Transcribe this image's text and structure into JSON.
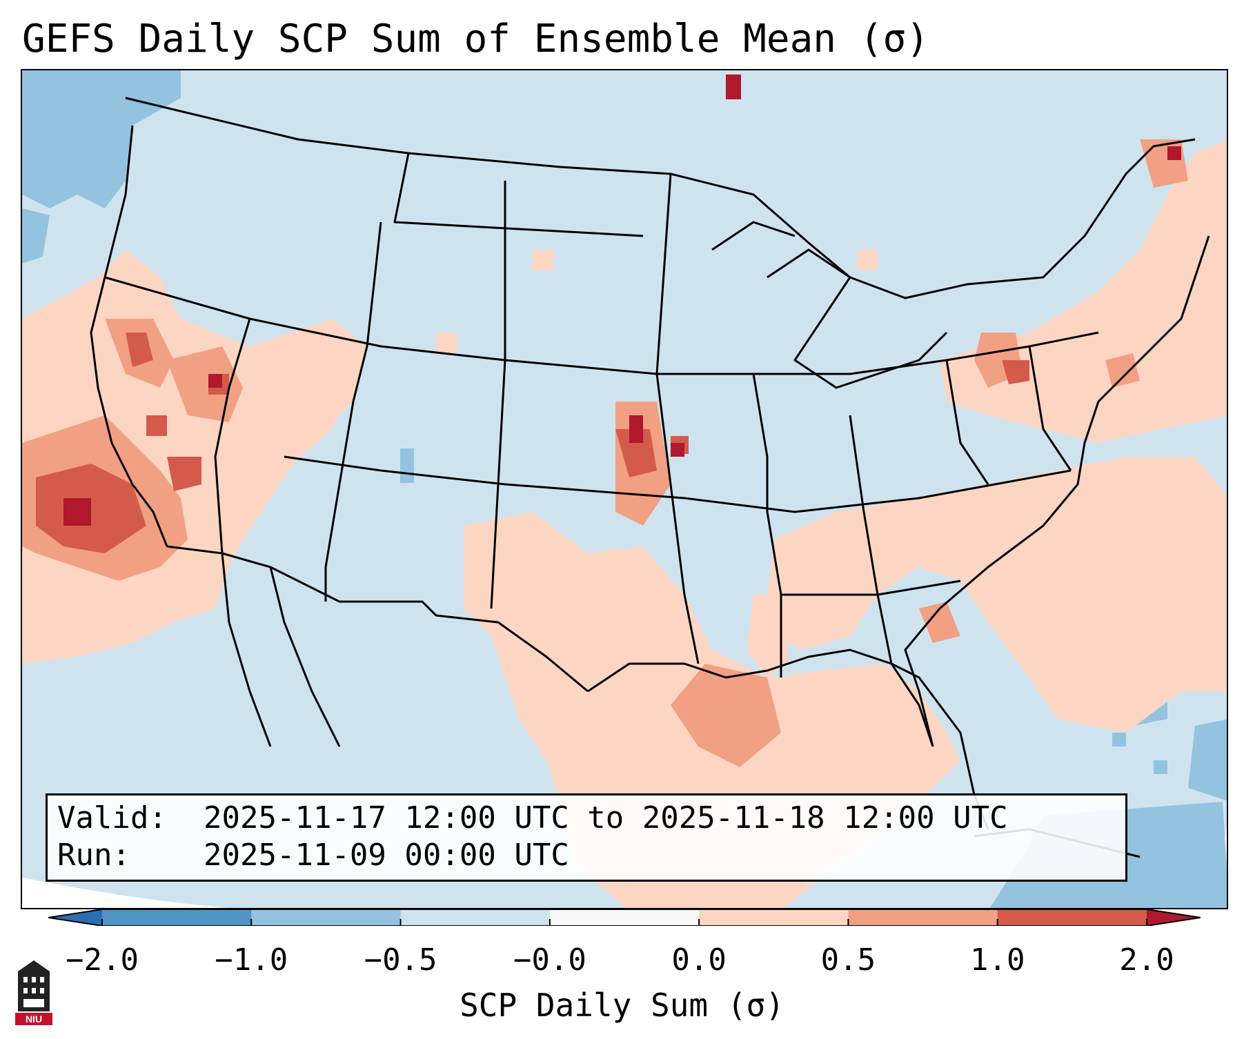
{
  "title": "GEFS Daily SCP Sum of Ensemble Mean (σ)",
  "info": {
    "valid_label": "Valid:",
    "valid_value": "2025-11-17 12:00 UTC to 2025-11-18 12:00 UTC",
    "run_label": "Run:",
    "run_value": "2025-11-09 00:00 UTC"
  },
  "colorbar": {
    "label": "SCP Daily Sum (σ)",
    "ticks": [
      "−2.0",
      "−1.0",
      "−0.5",
      "−0.0",
      "0.0",
      "0.5",
      "1.0",
      "2.0"
    ],
    "colors": [
      "#2b6fb0",
      "#4f95c8",
      "#93c3df",
      "#cfe3ef",
      "#f8f8f8",
      "#fcd6c3",
      "#f1a084",
      "#d45a4b",
      "#b1182b"
    ],
    "extend": "both"
  },
  "logo": {
    "icon": "university-tower-icon",
    "text": "NIU",
    "color": "#c8102e"
  },
  "map": {
    "projection": "lambert-conformal",
    "region": "CONUS",
    "background_value_color": "#cfe3ef"
  }
}
